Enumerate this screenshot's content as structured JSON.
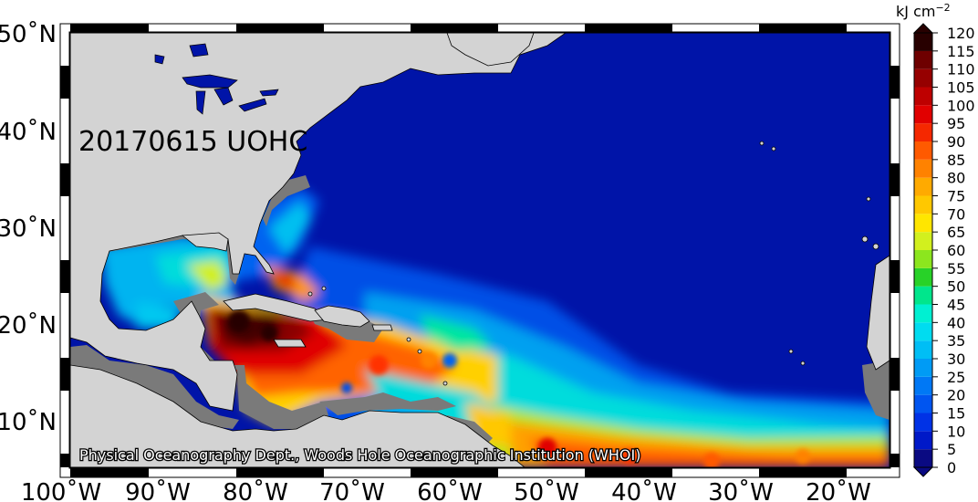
{
  "map": {
    "title": "20170615 UOHC",
    "credit": "Physical Oceanography Dept., Woods Hole Oceanographic Institution (WHOI)",
    "lat_labels": [
      "50˚N",
      "40˚N",
      "30˚N",
      "20˚N",
      "10˚N"
    ],
    "lon_labels": [
      "100˚W",
      "90˚W",
      "80˚W",
      "70˚W",
      "60˚W",
      "50˚W",
      "40˚W",
      "30˚W",
      "20˚W"
    ],
    "colors": {
      "land": "#d3d3d3",
      "no_data": "#7a7a7a",
      "background_ocean": "#0014a8"
    }
  },
  "colorbar": {
    "unit": "kJ cm",
    "unit_exponent": "−2",
    "ticks": [
      "0",
      "5",
      "10",
      "15",
      "20",
      "25",
      "30",
      "35",
      "40",
      "45",
      "50",
      "55",
      "60",
      "65",
      "70",
      "75",
      "80",
      "85",
      "90",
      "95",
      "100",
      "105",
      "110",
      "115",
      "120"
    ],
    "colors": [
      "#0a0a82",
      "#0019c8",
      "#0032e6",
      "#0055f0",
      "#0078f5",
      "#009bf5",
      "#00bef5",
      "#00dcf0",
      "#00f0d2",
      "#00e68c",
      "#28d228",
      "#8ce61e",
      "#d2f01e",
      "#ffe600",
      "#ffc800",
      "#ffaa00",
      "#ff8200",
      "#ff5a00",
      "#f52800",
      "#e10000",
      "#be0000",
      "#960000",
      "#6e0000",
      "#460000",
      "#280000"
    ]
  }
}
